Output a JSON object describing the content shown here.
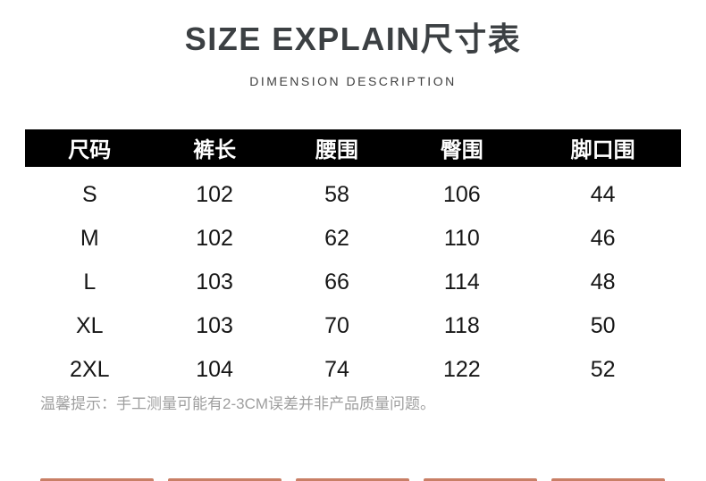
{
  "header": {
    "title": "SIZE EXPLAIN尺寸表",
    "subtitle": "DIMENSION DESCRIPTION"
  },
  "table": {
    "columns": [
      "尺码",
      "裤长",
      "腰围",
      "臀围",
      "脚口围"
    ],
    "rows": [
      [
        "S",
        "102",
        "58",
        "106",
        "44"
      ],
      [
        "M",
        "102",
        "62",
        "110",
        "46"
      ],
      [
        "L",
        "103",
        "66",
        "114",
        "48"
      ],
      [
        "XL",
        "103",
        "70",
        "118",
        "50"
      ],
      [
        "2XL",
        "104",
        "74",
        "122",
        "52"
      ]
    ],
    "header_bg": "#000000",
    "header_text_color": "#ffffff"
  },
  "note": "温馨提示：手工测量可能有2-3CM误差并非产品质量问题。",
  "footer": {
    "bar_color": "#c97f66",
    "bar_count": 5
  },
  "colors": {
    "title": "#3c4043",
    "body_text": "#161616",
    "note": "#9e9e9e",
    "background": "#ffffff"
  }
}
